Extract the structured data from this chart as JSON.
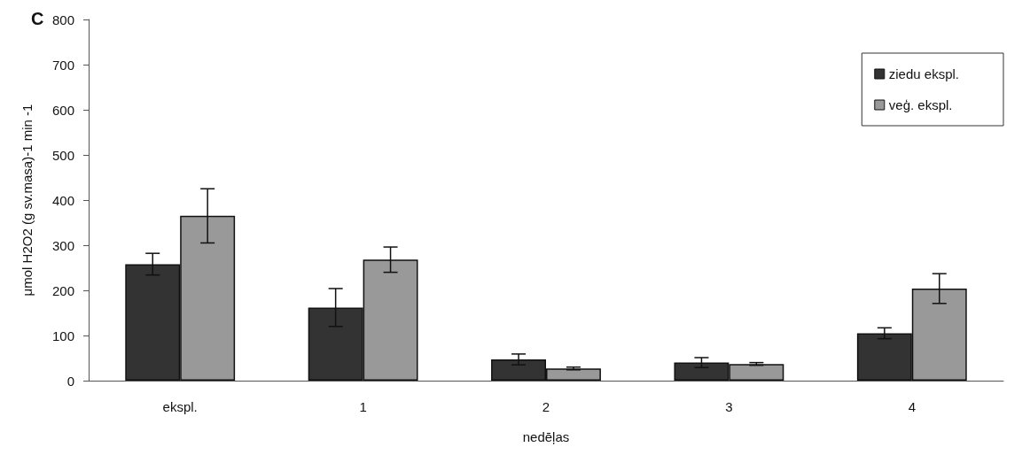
{
  "chart_data": {
    "type": "bar",
    "title": "C",
    "xlabel": "nedēļas",
    "ylabel": "μmol H2O2 (g sv.masa)-1 min -1",
    "categories": [
      "ekspl.",
      "1",
      "2",
      "3",
      "4"
    ],
    "series": [
      {
        "name": "ziedu ekspl.",
        "color": "#333333",
        "values": [
          258,
          162,
          47,
          40,
          105
        ],
        "errors": [
          24,
          42,
          12,
          11,
          12
        ]
      },
      {
        "name": "veģ. ekspl.",
        "color": "#999999",
        "values": [
          365,
          268,
          27,
          37,
          204
        ],
        "errors": [
          60,
          28,
          3,
          3,
          33
        ]
      }
    ],
    "ylim": [
      0,
      800
    ],
    "yticks": [
      0,
      100,
      200,
      300,
      400,
      500,
      600,
      700,
      800
    ],
    "grid": false,
    "legend": "top right"
  }
}
